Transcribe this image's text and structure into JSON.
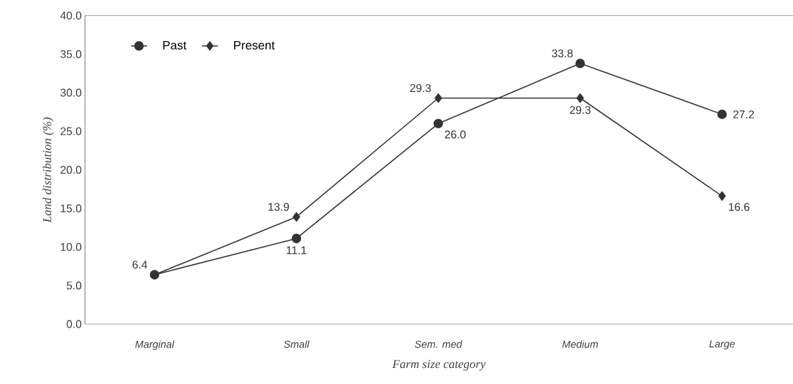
{
  "chart_data": {
    "type": "line",
    "xlabel": "Farm size category",
    "ylabel": "Land distribution (%)",
    "categories": [
      "Marginal",
      "Small",
      "Sem. med",
      "Medium",
      "Large"
    ],
    "series": [
      {
        "name": "Past",
        "color": "#333333",
        "marker": "circle",
        "values": [
          6.4,
          11.1,
          26.0,
          33.8,
          27.2
        ],
        "value_labels": [
          "6.4",
          "11.1",
          "26.0",
          "33.8",
          "27.2"
        ]
      },
      {
        "name": "Present",
        "color": "#333333",
        "marker": "diamond",
        "values": [
          6.4,
          13.9,
          29.3,
          29.3,
          16.6
        ],
        "value_labels": [
          null,
          "13.9",
          "29.3",
          "29.3",
          "16.6"
        ]
      }
    ],
    "ylim": [
      0,
      40
    ],
    "yticks": [
      {
        "value": 0,
        "label": "0.0"
      },
      {
        "value": 5,
        "label": "5.0"
      },
      {
        "value": 10,
        "label": "10.0"
      },
      {
        "value": 15,
        "label": "15.0"
      },
      {
        "value": 20,
        "label": "20.0"
      },
      {
        "value": 25,
        "label": "25.0"
      },
      {
        "value": 30,
        "label": "30.0"
      },
      {
        "value": 35,
        "label": "35.0"
      },
      {
        "value": 40,
        "label": "40.0"
      }
    ],
    "grid": false,
    "legend": "top left",
    "line_style": "solid"
  }
}
